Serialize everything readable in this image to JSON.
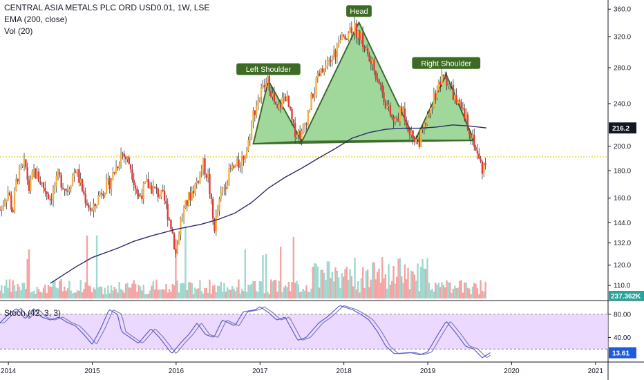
{
  "header": {
    "symbol_line": "CENTRAL ASIA METALS PLC ORD USD0.01, 1W, LSE",
    "ema_label": "EMA (200, close)",
    "vol_label": "Vol (20)"
  },
  "stoch_label": "Stoch (42, 3, 3)",
  "colors": {
    "up": "#F5B041",
    "down": "#E53935",
    "ema": "#2A2A6A",
    "pattern_fill": "#8FD18B",
    "pattern_stroke": "#3B6B2A",
    "label_bg": "#3D6B24",
    "stoch_bg": "#E5CCFF",
    "stoch_line": "#5B5BD6",
    "vol_up": "#9ED8CE",
    "vol_down": "#F5A3A3",
    "price_tag": "#131722",
    "vol_tag": "#26A69A",
    "stoch_tag": "#1E5CD9"
  },
  "chart_data": [
    {
      "type": "candlestick",
      "title": "CENTRAL ASIA METALS PLC ORD USD0.01, 1W, LSE",
      "x_ticks": [
        "2014",
        "2015",
        "2016",
        "2017",
        "2018",
        "2019",
        "2020",
        "2021"
      ],
      "y_ticks": [
        "360.0",
        "320.0",
        "280.0",
        "240.0",
        "200.0",
        "180.0",
        "160.0",
        "144.0",
        "132.0",
        "120.0",
        "110.0"
      ],
      "y_scale": "log",
      "y_range": [
        104,
        370
      ],
      "last_price_tag": "216.2",
      "volume_tag": "237.362K",
      "reference_line": 191,
      "price_path": [
        [
          2013.9,
          152
        ],
        [
          2014.0,
          165
        ],
        [
          2014.05,
          150
        ],
        [
          2014.1,
          175
        ],
        [
          2014.2,
          185
        ],
        [
          2014.25,
          165
        ],
        [
          2014.3,
          180
        ],
        [
          2014.4,
          170
        ],
        [
          2014.5,
          160
        ],
        [
          2014.6,
          175
        ],
        [
          2014.7,
          165
        ],
        [
          2014.8,
          182
        ],
        [
          2014.9,
          162
        ],
        [
          2015.0,
          150
        ],
        [
          2015.1,
          165
        ],
        [
          2015.2,
          170
        ],
        [
          2015.3,
          185
        ],
        [
          2015.35,
          195
        ],
        [
          2015.45,
          185
        ],
        [
          2015.55,
          160
        ],
        [
          2015.65,
          170
        ],
        [
          2015.75,
          165
        ],
        [
          2015.85,
          160
        ],
        [
          2015.95,
          140
        ],
        [
          2016.0,
          125
        ],
        [
          2016.05,
          145
        ],
        [
          2016.15,
          160
        ],
        [
          2016.25,
          172
        ],
        [
          2016.32,
          185
        ],
        [
          2016.38,
          175
        ],
        [
          2016.45,
          140
        ],
        [
          2016.55,
          165
        ],
        [
          2016.65,
          180
        ],
        [
          2016.75,
          185
        ],
        [
          2016.85,
          198
        ],
        [
          2016.92,
          230
        ],
        [
          2017.0,
          250
        ],
        [
          2017.1,
          265
        ],
        [
          2017.2,
          230
        ],
        [
          2017.3,
          250
        ],
        [
          2017.4,
          215
        ],
        [
          2017.5,
          210
        ],
        [
          2017.6,
          240
        ],
        [
          2017.7,
          270
        ],
        [
          2017.8,
          280
        ],
        [
          2017.9,
          300
        ],
        [
          2018.0,
          320
        ],
        [
          2018.1,
          335
        ],
        [
          2018.2,
          320
        ],
        [
          2018.3,
          290
        ],
        [
          2018.4,
          270
        ],
        [
          2018.5,
          240
        ],
        [
          2018.6,
          220
        ],
        [
          2018.7,
          235
        ],
        [
          2018.8,
          210
        ],
        [
          2018.9,
          205
        ],
        [
          2019.0,
          225
        ],
        [
          2019.1,
          255
        ],
        [
          2019.2,
          270
        ],
        [
          2019.25,
          262
        ],
        [
          2019.35,
          240
        ],
        [
          2019.45,
          225
        ],
        [
          2019.5,
          215
        ],
        [
          2019.55,
          205
        ],
        [
          2019.6,
          190
        ],
        [
          2019.65,
          182
        ],
        [
          2019.7,
          188
        ]
      ],
      "ema_path": [
        [
          2014.5,
          111
        ],
        [
          2014.8,
          119
        ],
        [
          2015.0,
          124
        ],
        [
          2015.3,
          129
        ],
        [
          2015.5,
          133
        ],
        [
          2015.7,
          136
        ],
        [
          2016.0,
          140
        ],
        [
          2016.3,
          143
        ],
        [
          2016.5,
          146
        ],
        [
          2016.7,
          150
        ],
        [
          2016.9,
          157
        ],
        [
          2017.1,
          167
        ],
        [
          2017.3,
          175
        ],
        [
          2017.5,
          182
        ],
        [
          2017.7,
          190
        ],
        [
          2017.9,
          198
        ],
        [
          2018.1,
          207
        ],
        [
          2018.3,
          212
        ],
        [
          2018.5,
          215
        ],
        [
          2018.7,
          216
        ],
        [
          2018.9,
          216
        ],
        [
          2019.1,
          217
        ],
        [
          2019.3,
          219
        ],
        [
          2019.5,
          218
        ],
        [
          2019.7,
          216.2
        ]
      ],
      "pattern": {
        "neckline": [
          [
            2016.92,
            202
          ],
          [
            2019.55,
            205
          ]
        ],
        "left_shoulder": [
          [
            2016.92,
            202
          ],
          [
            2017.1,
            265
          ],
          [
            2017.5,
            204
          ]
        ],
        "head": [
          [
            2017.5,
            204
          ],
          [
            2018.18,
            340
          ],
          [
            2018.85,
            205
          ]
        ],
        "right_shoulder": [
          [
            2018.85,
            205
          ],
          [
            2019.22,
            272
          ],
          [
            2019.55,
            205
          ]
        ]
      },
      "annotations": [
        {
          "label": "Left Shoulder",
          "x": 2017.1,
          "y": 265
        },
        {
          "label": "Head",
          "x": 2018.18,
          "y": 340
        },
        {
          "label": "Right Shoulder",
          "x": 2019.22,
          "y": 272
        }
      ]
    },
    {
      "type": "line",
      "title": "Stoch (42, 3, 3)",
      "y_ticks": [
        "80.00",
        "40.00"
      ],
      "y_range": [
        0,
        100
      ],
      "bands": [
        80,
        20
      ],
      "last_value_tag": "13.61",
      "k_path": [
        [
          2013.9,
          65
        ],
        [
          2014.0,
          80
        ],
        [
          2014.1,
          90
        ],
        [
          2014.2,
          72
        ],
        [
          2014.3,
          90
        ],
        [
          2014.4,
          75
        ],
        [
          2014.5,
          70
        ],
        [
          2014.6,
          75
        ],
        [
          2014.7,
          66
        ],
        [
          2014.8,
          60
        ],
        [
          2014.9,
          45
        ],
        [
          2015.0,
          28
        ],
        [
          2015.1,
          55
        ],
        [
          2015.2,
          88
        ],
        [
          2015.3,
          80
        ],
        [
          2015.35,
          50
        ],
        [
          2015.45,
          40
        ],
        [
          2015.55,
          30
        ],
        [
          2015.7,
          55
        ],
        [
          2015.8,
          40
        ],
        [
          2015.95,
          12
        ],
        [
          2016.05,
          30
        ],
        [
          2016.15,
          45
        ],
        [
          2016.25,
          65
        ],
        [
          2016.35,
          45
        ],
        [
          2016.45,
          40
        ],
        [
          2016.55,
          70
        ],
        [
          2016.7,
          60
        ],
        [
          2016.8,
          84
        ],
        [
          2016.95,
          88
        ],
        [
          2017.0,
          93
        ],
        [
          2017.1,
          83
        ],
        [
          2017.2,
          70
        ],
        [
          2017.3,
          75
        ],
        [
          2017.45,
          35
        ],
        [
          2017.55,
          40
        ],
        [
          2017.7,
          65
        ],
        [
          2017.8,
          75
        ],
        [
          2017.95,
          95
        ],
        [
          2018.1,
          88
        ],
        [
          2018.2,
          80
        ],
        [
          2018.3,
          70
        ],
        [
          2018.4,
          50
        ],
        [
          2018.5,
          25
        ],
        [
          2018.6,
          12
        ],
        [
          2018.8,
          14
        ],
        [
          2018.9,
          10
        ],
        [
          2019.0,
          15
        ],
        [
          2019.1,
          40
        ],
        [
          2019.22,
          68
        ],
        [
          2019.35,
          45
        ],
        [
          2019.45,
          25
        ],
        [
          2019.55,
          20
        ],
        [
          2019.65,
          5
        ],
        [
          2019.75,
          14
        ]
      ]
    }
  ]
}
